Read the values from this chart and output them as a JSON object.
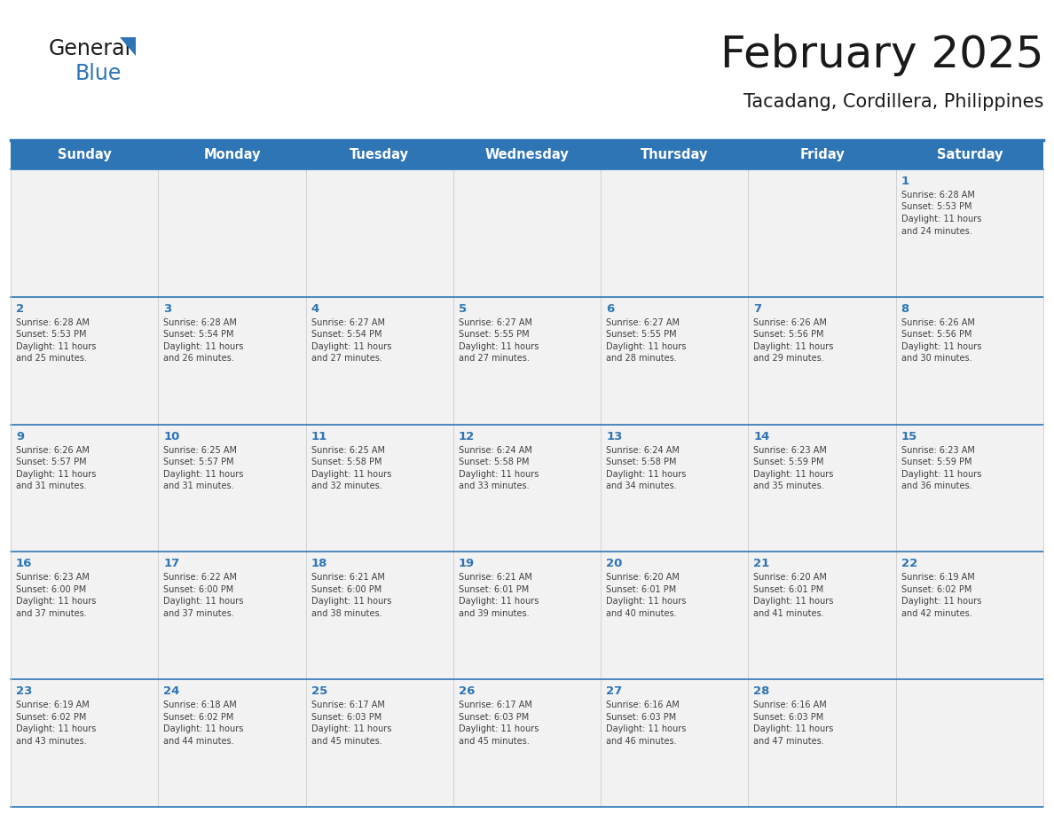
{
  "title": "February 2025",
  "subtitle": "Tacadang, Cordillera, Philippines",
  "days_of_week": [
    "Sunday",
    "Monday",
    "Tuesday",
    "Wednesday",
    "Thursday",
    "Friday",
    "Saturday"
  ],
  "header_bg": "#2E75B6",
  "header_text": "#FFFFFF",
  "cell_bg": "#F2F2F2",
  "line_color": "#2E75B6",
  "text_color": "#404040",
  "day_num_color": "#2E75B6",
  "logo_general_color": "#1A1A1A",
  "logo_blue_color": "#2E75B6",
  "title_color": "#1A1A1A",
  "subtitle_color": "#1A1A1A",
  "calendar_data": [
    [
      {
        "day": null,
        "lines": []
      },
      {
        "day": null,
        "lines": []
      },
      {
        "day": null,
        "lines": []
      },
      {
        "day": null,
        "lines": []
      },
      {
        "day": null,
        "lines": []
      },
      {
        "day": null,
        "lines": []
      },
      {
        "day": 1,
        "lines": [
          "Sunrise: 6:28 AM",
          "Sunset: 5:53 PM",
          "Daylight: 11 hours",
          "and 24 minutes."
        ]
      }
    ],
    [
      {
        "day": 2,
        "lines": [
          "Sunrise: 6:28 AM",
          "Sunset: 5:53 PM",
          "Daylight: 11 hours",
          "and 25 minutes."
        ]
      },
      {
        "day": 3,
        "lines": [
          "Sunrise: 6:28 AM",
          "Sunset: 5:54 PM",
          "Daylight: 11 hours",
          "and 26 minutes."
        ]
      },
      {
        "day": 4,
        "lines": [
          "Sunrise: 6:27 AM",
          "Sunset: 5:54 PM",
          "Daylight: 11 hours",
          "and 27 minutes."
        ]
      },
      {
        "day": 5,
        "lines": [
          "Sunrise: 6:27 AM",
          "Sunset: 5:55 PM",
          "Daylight: 11 hours",
          "and 27 minutes."
        ]
      },
      {
        "day": 6,
        "lines": [
          "Sunrise: 6:27 AM",
          "Sunset: 5:55 PM",
          "Daylight: 11 hours",
          "and 28 minutes."
        ]
      },
      {
        "day": 7,
        "lines": [
          "Sunrise: 6:26 AM",
          "Sunset: 5:56 PM",
          "Daylight: 11 hours",
          "and 29 minutes."
        ]
      },
      {
        "day": 8,
        "lines": [
          "Sunrise: 6:26 AM",
          "Sunset: 5:56 PM",
          "Daylight: 11 hours",
          "and 30 minutes."
        ]
      }
    ],
    [
      {
        "day": 9,
        "lines": [
          "Sunrise: 6:26 AM",
          "Sunset: 5:57 PM",
          "Daylight: 11 hours",
          "and 31 minutes."
        ]
      },
      {
        "day": 10,
        "lines": [
          "Sunrise: 6:25 AM",
          "Sunset: 5:57 PM",
          "Daylight: 11 hours",
          "and 31 minutes."
        ]
      },
      {
        "day": 11,
        "lines": [
          "Sunrise: 6:25 AM",
          "Sunset: 5:58 PM",
          "Daylight: 11 hours",
          "and 32 minutes."
        ]
      },
      {
        "day": 12,
        "lines": [
          "Sunrise: 6:24 AM",
          "Sunset: 5:58 PM",
          "Daylight: 11 hours",
          "and 33 minutes."
        ]
      },
      {
        "day": 13,
        "lines": [
          "Sunrise: 6:24 AM",
          "Sunset: 5:58 PM",
          "Daylight: 11 hours",
          "and 34 minutes."
        ]
      },
      {
        "day": 14,
        "lines": [
          "Sunrise: 6:23 AM",
          "Sunset: 5:59 PM",
          "Daylight: 11 hours",
          "and 35 minutes."
        ]
      },
      {
        "day": 15,
        "lines": [
          "Sunrise: 6:23 AM",
          "Sunset: 5:59 PM",
          "Daylight: 11 hours",
          "and 36 minutes."
        ]
      }
    ],
    [
      {
        "day": 16,
        "lines": [
          "Sunrise: 6:23 AM",
          "Sunset: 6:00 PM",
          "Daylight: 11 hours",
          "and 37 minutes."
        ]
      },
      {
        "day": 17,
        "lines": [
          "Sunrise: 6:22 AM",
          "Sunset: 6:00 PM",
          "Daylight: 11 hours",
          "and 37 minutes."
        ]
      },
      {
        "day": 18,
        "lines": [
          "Sunrise: 6:21 AM",
          "Sunset: 6:00 PM",
          "Daylight: 11 hours",
          "and 38 minutes."
        ]
      },
      {
        "day": 19,
        "lines": [
          "Sunrise: 6:21 AM",
          "Sunset: 6:01 PM",
          "Daylight: 11 hours",
          "and 39 minutes."
        ]
      },
      {
        "day": 20,
        "lines": [
          "Sunrise: 6:20 AM",
          "Sunset: 6:01 PM",
          "Daylight: 11 hours",
          "and 40 minutes."
        ]
      },
      {
        "day": 21,
        "lines": [
          "Sunrise: 6:20 AM",
          "Sunset: 6:01 PM",
          "Daylight: 11 hours",
          "and 41 minutes."
        ]
      },
      {
        "day": 22,
        "lines": [
          "Sunrise: 6:19 AM",
          "Sunset: 6:02 PM",
          "Daylight: 11 hours",
          "and 42 minutes."
        ]
      }
    ],
    [
      {
        "day": 23,
        "lines": [
          "Sunrise: 6:19 AM",
          "Sunset: 6:02 PM",
          "Daylight: 11 hours",
          "and 43 minutes."
        ]
      },
      {
        "day": 24,
        "lines": [
          "Sunrise: 6:18 AM",
          "Sunset: 6:02 PM",
          "Daylight: 11 hours",
          "and 44 minutes."
        ]
      },
      {
        "day": 25,
        "lines": [
          "Sunrise: 6:17 AM",
          "Sunset: 6:03 PM",
          "Daylight: 11 hours",
          "and 45 minutes."
        ]
      },
      {
        "day": 26,
        "lines": [
          "Sunrise: 6:17 AM",
          "Sunset: 6:03 PM",
          "Daylight: 11 hours",
          "and 45 minutes."
        ]
      },
      {
        "day": 27,
        "lines": [
          "Sunrise: 6:16 AM",
          "Sunset: 6:03 PM",
          "Daylight: 11 hours",
          "and 46 minutes."
        ]
      },
      {
        "day": 28,
        "lines": [
          "Sunrise: 6:16 AM",
          "Sunset: 6:03 PM",
          "Daylight: 11 hours",
          "and 47 minutes."
        ]
      },
      {
        "day": null,
        "lines": []
      }
    ]
  ],
  "fig_width": 11.88,
  "fig_height": 9.18,
  "dpi": 100
}
